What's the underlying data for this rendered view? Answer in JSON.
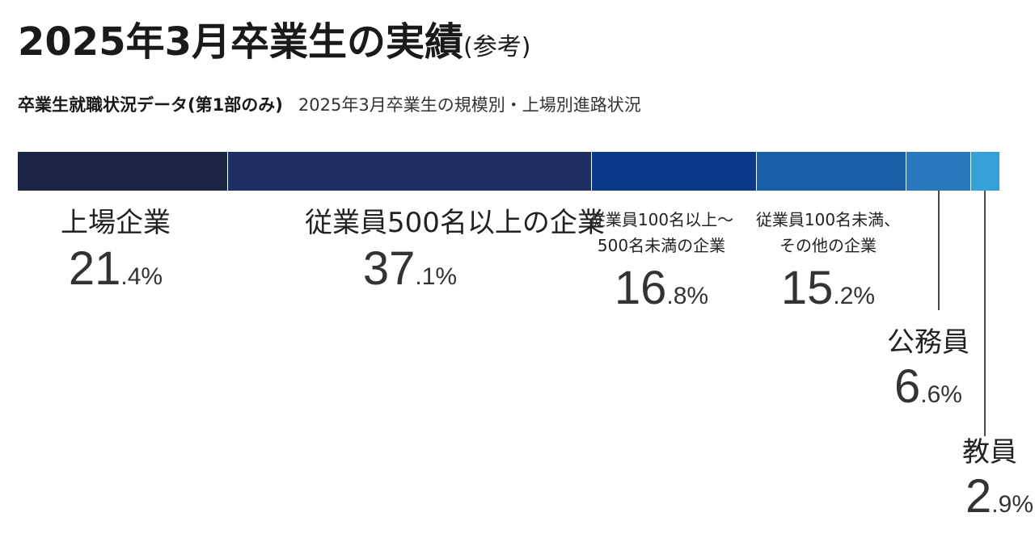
{
  "title": {
    "main": "2025年3月卒業生の実績",
    "paren": "(参考)"
  },
  "subtitle": {
    "strong": "卒業生就職状況データ(第1部のみ)",
    "light": "2025年3月卒業生の規模別・上場別進路状況"
  },
  "chart_data": {
    "type": "bar",
    "orientation": "horizontal-stacked",
    "unit": "%",
    "categories": [
      "上場企業",
      "従業員500名以上の企業",
      "従業員100名以上〜500名未満の企業",
      "従業員100名未満、その他の企業",
      "公務員",
      "教員"
    ],
    "values": [
      21.4,
      37.1,
      16.8,
      15.2,
      6.6,
      2.9
    ],
    "colors": [
      "#1b2445",
      "#1d2f63",
      "#083a87",
      "#1b5ea6",
      "#2a78bb",
      "#35a1d8"
    ],
    "labels": [
      {
        "lines": [
          "上場企業"
        ],
        "int": "21",
        "dec": ".4%"
      },
      {
        "lines": [
          "従業員500名以上の企業"
        ],
        "int": "37",
        "dec": ".1%"
      },
      {
        "lines": [
          "従業員100名以上〜",
          "500名未満の企業"
        ],
        "int": "16",
        "dec": ".8%"
      },
      {
        "lines": [
          "従業員100名未満、",
          "その他の企業"
        ],
        "int": "15",
        "dec": ".2%"
      },
      {
        "lines": [
          "公務員"
        ],
        "int": "6",
        "dec": ".6%"
      },
      {
        "lines": [
          "教員"
        ],
        "int": "2",
        "dec": ".9%"
      }
    ]
  }
}
